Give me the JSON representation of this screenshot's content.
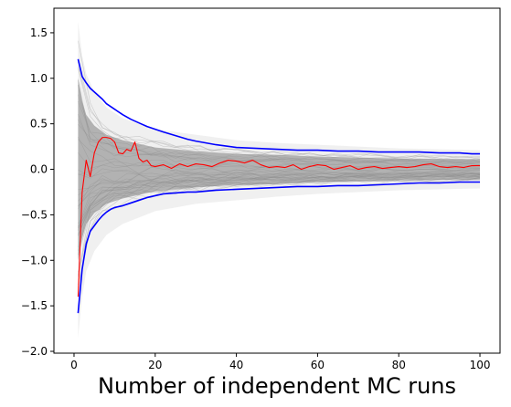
{
  "chart_data": {
    "type": "line",
    "title": "",
    "xlabel": "Number of independent MC runs",
    "ylabel": "",
    "xlim": [
      -4.95,
      104.95
    ],
    "ylim": [
      -2.02,
      1.77
    ],
    "x_ticks": [
      0,
      20,
      40,
      60,
      80,
      100
    ],
    "x_tick_labels": [
      "0",
      "20",
      "40",
      "60",
      "80",
      "100"
    ],
    "y_ticks": [
      -2.0,
      -1.5,
      -1.0,
      -0.5,
      0.0,
      0.5,
      1.0,
      1.5
    ],
    "y_tick_labels": [
      "−2.0",
      "−1.5",
      "−1.0",
      "−0.5",
      "0.0",
      "0.5",
      "1.0",
      "1.5"
    ],
    "grid": false,
    "legend": "none",
    "background_band": {
      "description": "hundreds of faint grey sample-mean trajectories",
      "color": "#808080",
      "x": [
        1,
        2,
        3,
        5,
        8,
        12,
        20,
        30,
        40,
        50,
        60,
        70,
        80,
        90,
        100
      ],
      "outer_upper": [
        1.62,
        1.25,
        1.05,
        0.85,
        0.68,
        0.56,
        0.44,
        0.38,
        0.32,
        0.29,
        0.27,
        0.25,
        0.23,
        0.22,
        0.21
      ],
      "outer_lower": [
        -1.85,
        -1.4,
        -1.12,
        -0.9,
        -0.72,
        -0.6,
        -0.46,
        -0.38,
        -0.34,
        -0.3,
        -0.27,
        -0.25,
        -0.23,
        -0.22,
        -0.21
      ],
      "inner_upper": [
        1.0,
        0.75,
        0.6,
        0.48,
        0.38,
        0.32,
        0.24,
        0.2,
        0.17,
        0.16,
        0.14,
        0.13,
        0.12,
        0.115,
        0.11
      ],
      "inner_lower": [
        -1.0,
        -0.75,
        -0.6,
        -0.48,
        -0.38,
        -0.32,
        -0.24,
        -0.2,
        -0.17,
        -0.16,
        -0.14,
        -0.13,
        -0.12,
        -0.115,
        -0.11
      ]
    },
    "series": [
      {
        "color": "#0000ff",
        "line_width": 1.6,
        "x": [
          1,
          2,
          3,
          4,
          5,
          6,
          7,
          8,
          9,
          10,
          12,
          14,
          16,
          18,
          20,
          22,
          25,
          28,
          30,
          35,
          40,
          45,
          50,
          55,
          60,
          65,
          70,
          75,
          80,
          85,
          90,
          95,
          98,
          100
        ],
        "y": [
          1.21,
          1.02,
          0.95,
          0.89,
          0.85,
          0.81,
          0.77,
          0.72,
          0.69,
          0.66,
          0.6,
          0.55,
          0.51,
          0.47,
          0.44,
          0.41,
          0.37,
          0.33,
          0.31,
          0.27,
          0.24,
          0.23,
          0.22,
          0.21,
          0.21,
          0.2,
          0.2,
          0.19,
          0.19,
          0.19,
          0.18,
          0.18,
          0.17,
          0.17
        ]
      },
      {
        "color": "#0000ff",
        "line_width": 1.6,
        "x": [
          1,
          2,
          3,
          4,
          5,
          6,
          7,
          8,
          9,
          10,
          12,
          14,
          16,
          18,
          20,
          22,
          25,
          28,
          30,
          35,
          40,
          45,
          50,
          55,
          60,
          65,
          70,
          75,
          80,
          85,
          90,
          95,
          98,
          100
        ],
        "y": [
          -1.58,
          -1.1,
          -0.82,
          -0.68,
          -0.62,
          -0.56,
          -0.51,
          -0.47,
          -0.44,
          -0.42,
          -0.4,
          -0.37,
          -0.34,
          -0.31,
          -0.29,
          -0.27,
          -0.26,
          -0.25,
          -0.25,
          -0.23,
          -0.22,
          -0.21,
          -0.2,
          -0.19,
          -0.19,
          -0.18,
          -0.18,
          -0.17,
          -0.16,
          -0.15,
          -0.15,
          -0.14,
          -0.14,
          -0.14
        ]
      },
      {
        "color": "#ff0000",
        "line_width": 1.1,
        "x": [
          1,
          2,
          3,
          4,
          5,
          6,
          7,
          8,
          9,
          10,
          11,
          12,
          13,
          14,
          15,
          16,
          17,
          18,
          19,
          20,
          22,
          24,
          26,
          28,
          30,
          32,
          34,
          36,
          38,
          40,
          42,
          44,
          46,
          48,
          50,
          52,
          54,
          56,
          58,
          60,
          62,
          64,
          66,
          68,
          70,
          72,
          74,
          76,
          78,
          80,
          82,
          84,
          86,
          88,
          90,
          92,
          94,
          96,
          98,
          100
        ],
        "y": [
          -1.4,
          -0.25,
          0.1,
          -0.08,
          0.18,
          0.3,
          0.35,
          0.35,
          0.34,
          0.3,
          0.18,
          0.17,
          0.22,
          0.2,
          0.3,
          0.12,
          0.08,
          0.1,
          0.04,
          0.03,
          0.05,
          0.01,
          0.06,
          0.03,
          0.06,
          0.05,
          0.03,
          0.07,
          0.1,
          0.09,
          0.07,
          0.1,
          0.05,
          0.02,
          0.03,
          0.02,
          0.05,
          0.0,
          0.03,
          0.05,
          0.04,
          0.0,
          0.02,
          0.04,
          0.0,
          0.02,
          0.03,
          0.01,
          0.02,
          0.03,
          0.02,
          0.03,
          0.05,
          0.06,
          0.03,
          0.02,
          0.03,
          0.02,
          0.04,
          0.04
        ]
      }
    ]
  }
}
